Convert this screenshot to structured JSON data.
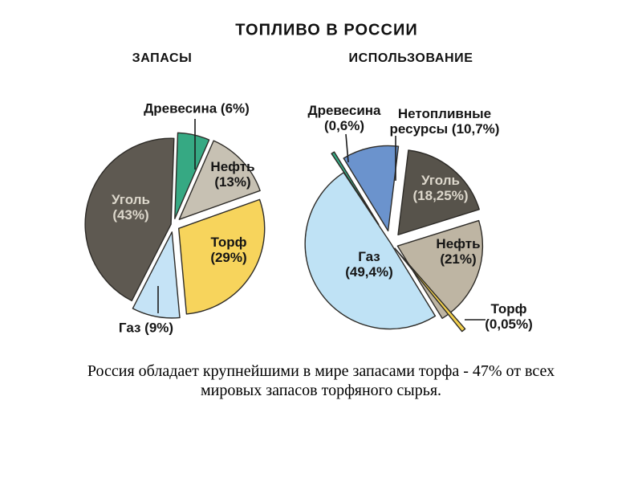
{
  "title": "ТОПЛИВО В РОССИИ",
  "caption": {
    "line1": "Россия обладает крупнейшими в мире запасами торфа - 47% от всех",
    "line2": "мировых запасов торфяного сырья."
  },
  "colors": {
    "coal_dark": "#5e5951",
    "wood_green": "#36a983",
    "oil_gray": "#c7c1b3",
    "peat_yellow": "#f7d45c",
    "gas_lightblue": "#c5e3f6",
    "nonfuel_blue": "#6b93cd",
    "slice_outline": "#2d2b27",
    "leader_line": "#1c1c1c",
    "light_label_text": "#ddd8cc"
  },
  "chart_data": [
    {
      "type": "pie",
      "title": "ЗАПАСЫ",
      "units": "%",
      "direction": "clockwise",
      "start_angle_deg_from_top": 2,
      "slices": [
        {
          "label": "Древесина",
          "value": 6,
          "pct_label": "(6%)",
          "color": "#36a983",
          "display": [
            "Древесина (6%)"
          ]
        },
        {
          "label": "Нефть",
          "value": 13,
          "pct_label": "(13%)",
          "color": "#c7c1b3",
          "display": [
            "Нефть",
            "(13%)"
          ]
        },
        {
          "label": "Торф",
          "value": 29,
          "pct_label": "(29%)",
          "color": "#f7d45c",
          "display": [
            "Торф",
            "(29%)"
          ]
        },
        {
          "label": "Газ",
          "value": 9,
          "pct_label": "(9%)",
          "color": "#c5e3f6",
          "display": [
            "Газ (9%)"
          ]
        },
        {
          "label": "Уголь",
          "value": 43,
          "pct_label": "(43%)",
          "color": "#5e5951",
          "display": [
            "Уголь",
            "(43%)"
          ]
        }
      ]
    },
    {
      "type": "pie",
      "title": "ИСПОЛЬЗОВАНИЕ",
      "units": "%",
      "direction": "clockwise",
      "start_angle_deg_from_top": 7,
      "slices": [
        {
          "label": "Уголь",
          "value": 18.25,
          "pct_label": "(18,25%)",
          "color": "#57534b",
          "display": [
            "Уголь",
            "(18,25%)"
          ]
        },
        {
          "label": "Нефть",
          "value": 21,
          "pct_label": "(21%)",
          "color": "#beb5a3",
          "display": [
            "Нефть",
            "(21%)"
          ]
        },
        {
          "label": "Торф",
          "value": 0.05,
          "pct_label": "(0,05%)",
          "color": "#f2d04e",
          "display": [
            "Торф",
            "(0,05%)"
          ]
        },
        {
          "label": "Газ",
          "value": 49.4,
          "pct_label": "(49,4%)",
          "color": "#bfe2f5",
          "display": [
            "Газ",
            "(49,4%)"
          ]
        },
        {
          "label": "Древесина",
          "value": 0.6,
          "pct_label": "(0,6%)",
          "color": "#36a983",
          "display": [
            "Древесина",
            "(0,6%)"
          ]
        },
        {
          "label": "Нетопливные ресурсы",
          "value": 10.7,
          "pct_label": "(10,7%)",
          "color": "#6b93cd",
          "display": [
            "Нетопливные",
            "ресурсы (10,7%)"
          ]
        }
      ]
    }
  ]
}
